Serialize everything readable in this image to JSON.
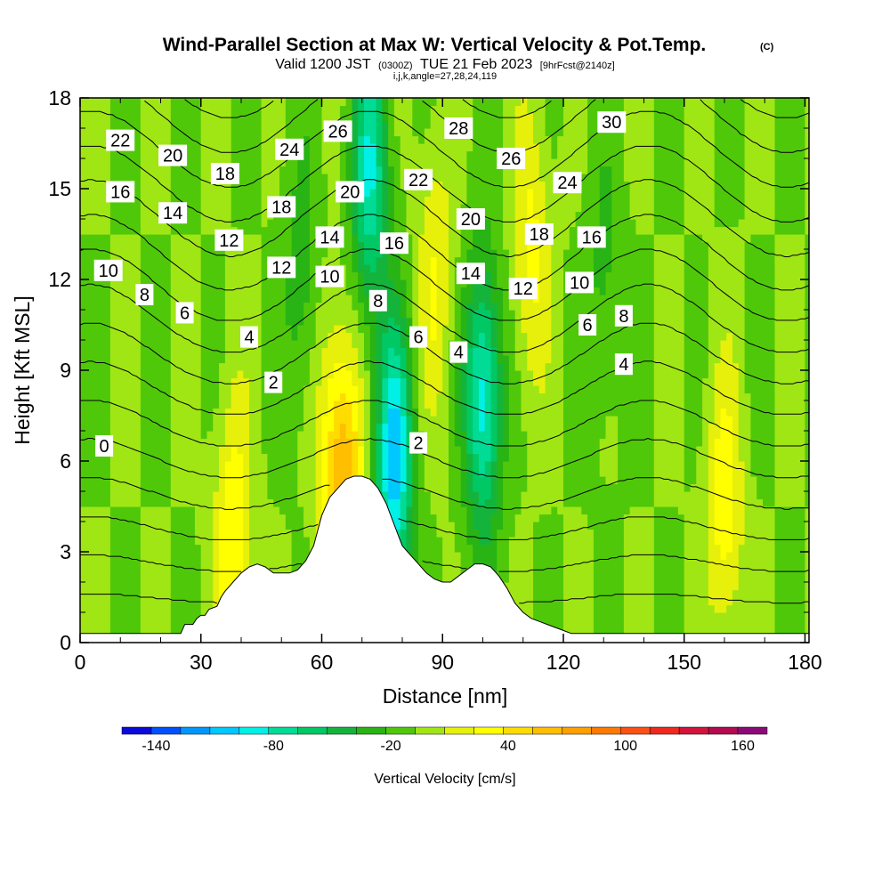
{
  "chart_data": {
    "type": "heatmap",
    "title": "Wind-Parallel Section at Max W: Vertical Velocity & Pot.Temp.",
    "title_suffix": "(C)",
    "subtitle": {
      "valid_prefix": "Valid 1200 JST",
      "utc": "(0300Z)",
      "date": "TUE 21 Feb 2023",
      "forecast": "[9hrFcst@2140z]"
    },
    "subtitle2": "i,j,k,angle=27,28,24,119",
    "xlabel": "Distance [nm]",
    "ylabel": "Height [Kft MSL]",
    "xlim": [
      0,
      181
    ],
    "ylim": [
      0,
      18
    ],
    "x_ticks": [
      0,
      30,
      60,
      90,
      120,
      150,
      180
    ],
    "y_ticks": [
      0,
      3,
      6,
      9,
      12,
      15,
      18
    ],
    "colorbar": {
      "label": "Vertical Velocity [cm/s]",
      "tick_labels": [
        -140,
        -80,
        -20,
        40,
        100,
        160
      ],
      "levels": [
        -150,
        -135,
        -120,
        -105,
        -90,
        -75,
        -60,
        -45,
        -30,
        -15,
        0,
        15,
        30,
        45,
        60,
        75,
        90,
        105,
        120,
        135,
        150,
        165,
        180
      ],
      "colors": [
        "#0a0adc",
        "#0050ff",
        "#0096ff",
        "#00c8ff",
        "#00f0e6",
        "#00dc96",
        "#00c864",
        "#14b43c",
        "#28b414",
        "#50c80a",
        "#a0e614",
        "#e6f00a",
        "#ffff00",
        "#ffdc00",
        "#ffbe00",
        "#ffa000",
        "#ff7800",
        "#ff5014",
        "#f0281e",
        "#d2143c",
        "#b40a50",
        "#8c0a78",
        "#5a0a8c"
      ]
    },
    "terrain_profile": {
      "x_nm": [
        0,
        25,
        26,
        28,
        29,
        30,
        31,
        32,
        34,
        35,
        36,
        38,
        40,
        42,
        44,
        46,
        48,
        50,
        52,
        54,
        56,
        58,
        60,
        62,
        64,
        66,
        68,
        70,
        72,
        74,
        76,
        78,
        80,
        82,
        84,
        86,
        88,
        90,
        92,
        94,
        96,
        98,
        100,
        102,
        104,
        106,
        108,
        110,
        112,
        114,
        116,
        118,
        120,
        122,
        124,
        181
      ],
      "height_kft": [
        0.3,
        0.3,
        0.6,
        0.6,
        0.8,
        0.9,
        0.9,
        1.1,
        1.2,
        1.5,
        1.7,
        2.0,
        2.3,
        2.5,
        2.6,
        2.5,
        2.3,
        2.3,
        2.3,
        2.4,
        2.7,
        3.2,
        4.2,
        4.8,
        5.1,
        5.4,
        5.5,
        5.5,
        5.4,
        5.1,
        4.6,
        3.9,
        3.2,
        2.9,
        2.6,
        2.3,
        2.1,
        2.0,
        2.0,
        2.2,
        2.4,
        2.6,
        2.6,
        2.5,
        2.2,
        1.8,
        1.3,
        1.0,
        0.8,
        0.7,
        0.6,
        0.5,
        0.4,
        0.3,
        0.3,
        0.3
      ]
    },
    "velocity_field_features": [
      {
        "x_nm": 38,
        "z_kft": 3.5,
        "w_cms": 45
      },
      {
        "x_nm": 62,
        "z_kft": 7.0,
        "w_cms": 25
      },
      {
        "x_nm": 66,
        "z_kft": 5.0,
        "w_cms": 65
      },
      {
        "x_nm": 72,
        "z_kft": 15.5,
        "w_cms": -75
      },
      {
        "x_nm": 78,
        "z_kft": 6.0,
        "w_cms": -100
      },
      {
        "x_nm": 88,
        "z_kft": 12.0,
        "w_cms": 30
      },
      {
        "x_nm": 100,
        "z_kft": 8.0,
        "w_cms": -85
      },
      {
        "x_nm": 112,
        "z_kft": 13.0,
        "w_cms": 35
      },
      {
        "x_nm": 160,
        "z_kft": 4.5,
        "w_cms": 40
      },
      {
        "x_nm": 55,
        "z_kft": 12.0,
        "w_cms": -25
      },
      {
        "x_nm": 130,
        "z_kft": 12.0,
        "w_cms": -20
      }
    ],
    "potential_temperature_contours_C": [
      -2,
      0,
      2,
      4,
      6,
      8,
      10,
      12,
      14,
      16,
      18,
      20,
      22,
      24,
      26,
      28,
      30
    ],
    "contour_labels": [
      {
        "text": "22",
        "x_nm": 10,
        "z_kft": 16.6
      },
      {
        "text": "20",
        "x_nm": 23,
        "z_kft": 16.1
      },
      {
        "text": "18",
        "x_nm": 36,
        "z_kft": 15.5
      },
      {
        "text": "24",
        "x_nm": 52,
        "z_kft": 16.3
      },
      {
        "text": "26",
        "x_nm": 64,
        "z_kft": 16.9
      },
      {
        "text": "28",
        "x_nm": 94,
        "z_kft": 17.0
      },
      {
        "text": "30",
        "x_nm": 132,
        "z_kft": 17.2
      },
      {
        "text": "26",
        "x_nm": 107,
        "z_kft": 16.0
      },
      {
        "text": "24",
        "x_nm": 121,
        "z_kft": 15.2
      },
      {
        "text": "22",
        "x_nm": 84,
        "z_kft": 15.3
      },
      {
        "text": "20",
        "x_nm": 67,
        "z_kft": 14.9
      },
      {
        "text": "16",
        "x_nm": 10,
        "z_kft": 14.9
      },
      {
        "text": "14",
        "x_nm": 23,
        "z_kft": 14.2
      },
      {
        "text": "18",
        "x_nm": 50,
        "z_kft": 14.4
      },
      {
        "text": "20",
        "x_nm": 97,
        "z_kft": 14.0
      },
      {
        "text": "12",
        "x_nm": 37,
        "z_kft": 13.3
      },
      {
        "text": "14",
        "x_nm": 62,
        "z_kft": 13.4
      },
      {
        "text": "16",
        "x_nm": 78,
        "z_kft": 13.2
      },
      {
        "text": "18",
        "x_nm": 114,
        "z_kft": 13.5
      },
      {
        "text": "16",
        "x_nm": 127,
        "z_kft": 13.4
      },
      {
        "text": "10",
        "x_nm": 7,
        "z_kft": 12.3
      },
      {
        "text": "12",
        "x_nm": 50,
        "z_kft": 12.4
      },
      {
        "text": "10",
        "x_nm": 62,
        "z_kft": 12.1
      },
      {
        "text": "14",
        "x_nm": 97,
        "z_kft": 12.2
      },
      {
        "text": "12",
        "x_nm": 110,
        "z_kft": 11.7
      },
      {
        "text": "10",
        "x_nm": 124,
        "z_kft": 11.9
      },
      {
        "text": "8",
        "x_nm": 16,
        "z_kft": 11.5
      },
      {
        "text": "6",
        "x_nm": 26,
        "z_kft": 10.9
      },
      {
        "text": "8",
        "x_nm": 74,
        "z_kft": 11.3
      },
      {
        "text": "8",
        "x_nm": 135,
        "z_kft": 10.8
      },
      {
        "text": "6",
        "x_nm": 126,
        "z_kft": 10.5
      },
      {
        "text": "4",
        "x_nm": 42,
        "z_kft": 10.1
      },
      {
        "text": "6",
        "x_nm": 84,
        "z_kft": 10.1
      },
      {
        "text": "4",
        "x_nm": 94,
        "z_kft": 9.6
      },
      {
        "text": "4",
        "x_nm": 135,
        "z_kft": 9.2
      },
      {
        "text": "2",
        "x_nm": 48,
        "z_kft": 8.6
      },
      {
        "text": "2",
        "x_nm": 84,
        "z_kft": 6.6
      },
      {
        "text": "0",
        "x_nm": 6,
        "z_kft": 6.5
      }
    ]
  }
}
